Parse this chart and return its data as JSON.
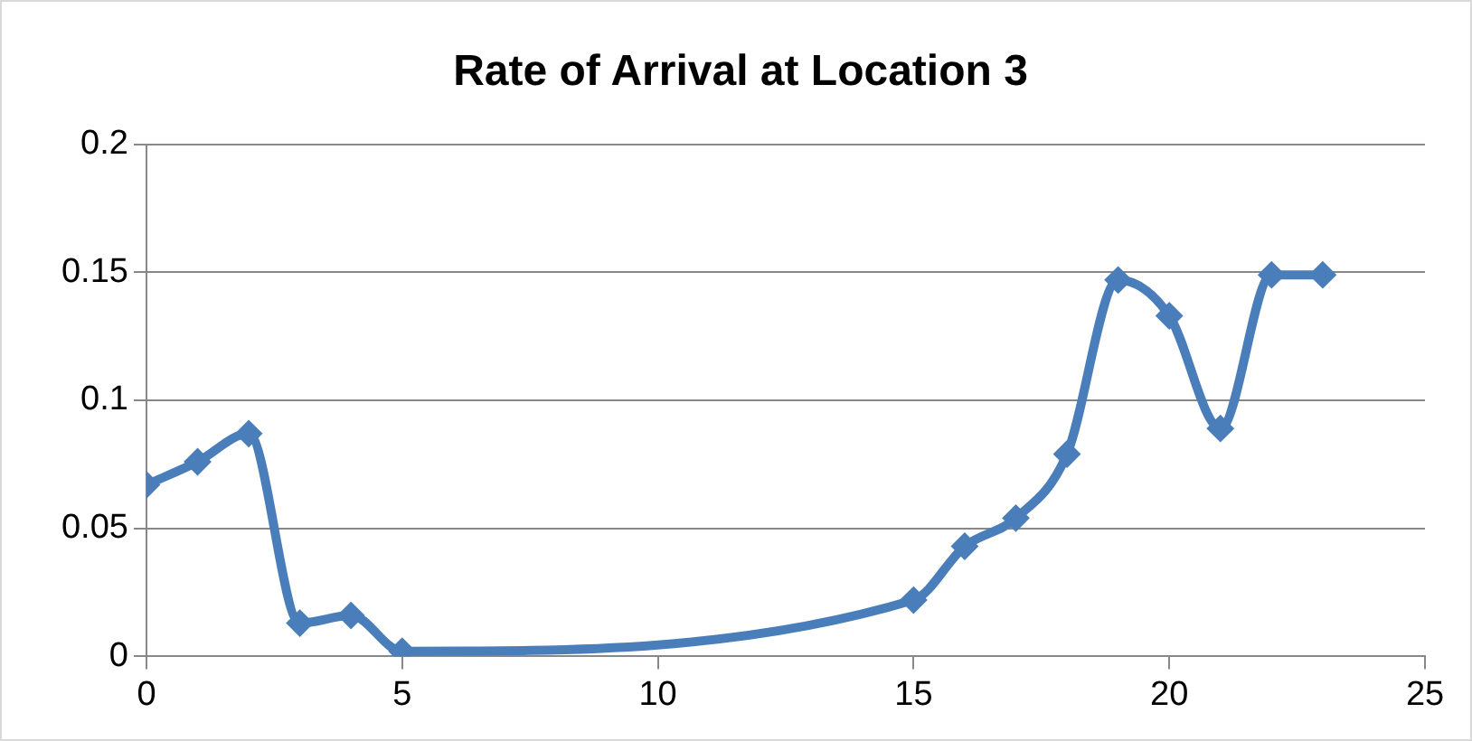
{
  "chart_data": {
    "type": "line",
    "title": "Rate of Arrival at Location 3",
    "x": [
      0,
      1,
      2,
      3,
      4,
      5,
      15,
      16,
      17,
      18,
      19,
      20,
      21,
      22,
      23
    ],
    "series": [
      {
        "color": "#4a7ebb",
        "values": [
          0.067,
          0.076,
          0.087,
          0.013,
          0.016,
          0.002,
          0.022,
          0.043,
          0.054,
          0.079,
          0.147,
          0.133,
          0.089,
          0.149,
          0.149
        ]
      }
    ],
    "xlim": [
      0,
      25
    ],
    "xticks": [
      0,
      5,
      10,
      15,
      20,
      25
    ],
    "ylim": [
      0,
      0.2
    ],
    "yticks": [
      0,
      0.05,
      0.1,
      0.15,
      0.2
    ],
    "grid": "y",
    "legend": false,
    "marker": "diamond",
    "line_style": "solid"
  }
}
